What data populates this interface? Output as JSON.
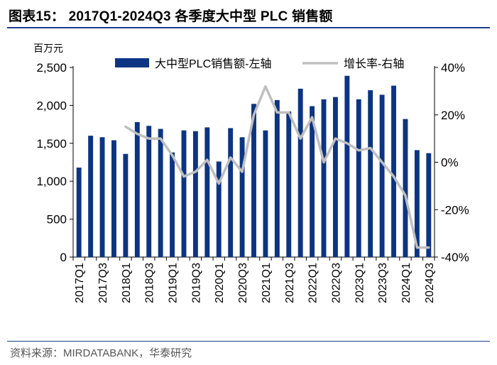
{
  "title": "图表15：  2017Q1-2024Q3 各季度大中型 PLC 销售额",
  "source": "资料来源：MIRDATABANK，华泰研究",
  "chart_data": {
    "type": "bar+line",
    "unit_label": "百万元",
    "categories": [
      "2017Q1",
      "2017Q2",
      "2017Q3",
      "2017Q4",
      "2018Q1",
      "2018Q2",
      "2018Q3",
      "2018Q4",
      "2019Q1",
      "2019Q2",
      "2019Q3",
      "2019Q4",
      "2020Q1",
      "2020Q2",
      "2020Q3",
      "2020Q4",
      "2021Q1",
      "2021Q2",
      "2021Q3",
      "2021Q4",
      "2022Q1",
      "2022Q2",
      "2022Q3",
      "2022Q4",
      "2023Q1",
      "2023Q2",
      "2023Q3",
      "2023Q4",
      "2024Q1",
      "2024Q2",
      "2024Q3"
    ],
    "x_tick_labels": [
      "2017Q1",
      "2017Q3",
      "2018Q1",
      "2018Q3",
      "2019Q1",
      "2019Q3",
      "2020Q1",
      "2020Q3",
      "2021Q1",
      "2021Q3",
      "2022Q1",
      "2022Q3",
      "2023Q1",
      "2023Q3",
      "2024Q1",
      "2024Q3"
    ],
    "series": [
      {
        "name": "大中型PLC销售额-左轴",
        "type": "bar",
        "axis": "left",
        "color": "#0c3483",
        "values": [
          1180,
          1600,
          1580,
          1540,
          1360,
          1780,
          1730,
          1690,
          1380,
          1670,
          1660,
          1710,
          1260,
          1700,
          1580,
          2020,
          1670,
          2070,
          1920,
          2220,
          1990,
          2080,
          2110,
          2390,
          2080,
          2200,
          2140,
          2260,
          1820,
          1410,
          1370
        ]
      },
      {
        "name": "增长率-右轴",
        "type": "line",
        "axis": "right",
        "color": "#bfbfbf",
        "values": [
          null,
          null,
          null,
          null,
          15,
          12,
          10,
          10,
          3,
          -6,
          -4,
          1,
          -9,
          2,
          -4,
          20,
          32,
          21,
          21,
          10,
          19,
          0,
          10,
          8,
          5,
          6,
          0,
          -6,
          -14,
          -36,
          -36
        ]
      }
    ],
    "y_left": {
      "min": 0,
      "max": 2500,
      "ticks": [
        0,
        500,
        1000,
        1500,
        2000,
        2500
      ],
      "tick_labels": [
        "0",
        "500",
        "1,000",
        "1,500",
        "2,000",
        "2,500"
      ]
    },
    "y_right": {
      "min": -40,
      "max": 40,
      "ticks": [
        -40,
        -20,
        0,
        20,
        40
      ],
      "tick_labels": [
        "-40%",
        "-20%",
        "0%",
        "20%",
        "40%"
      ]
    },
    "legend_position": "top"
  }
}
